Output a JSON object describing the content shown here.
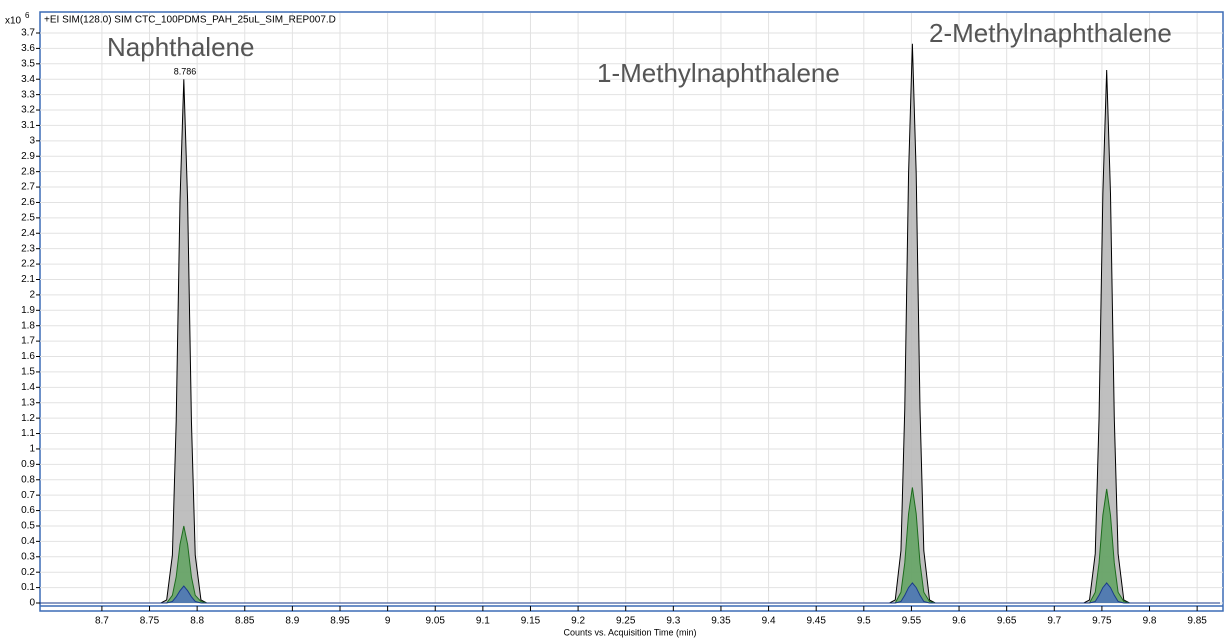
{
  "chart_data": {
    "type": "area",
    "title": "+EI SIM(128.0) SIM CTC_100PDMS_PAH_25uL_SIM_REP007.D",
    "x_label": "Counts vs. Acquisition Time (min)",
    "y_multiplier": {
      "base": "x10",
      "exponent": "6"
    },
    "annotations": [
      "Naphthalene",
      "1-Methylnaphthalene",
      "2-Methylnaphthalene",
      "8.786"
    ],
    "xlim": [
      8.635,
      9.874
    ],
    "ylim": [
      0,
      3.7
    ],
    "xticks": [
      8.7,
      8.75,
      8.8,
      8.85,
      8.9,
      8.95,
      9,
      9.05,
      9.1,
      9.15,
      9.2,
      9.25,
      9.3,
      9.35,
      9.4,
      9.45,
      9.5,
      9.55,
      9.6,
      9.65,
      9.7,
      9.75,
      9.8,
      9.85
    ],
    "yticks": [
      0,
      0.1,
      0.2,
      0.3,
      0.4,
      0.5,
      0.6,
      0.7,
      0.8,
      0.9,
      1,
      1.1,
      1.2,
      1.3,
      1.4,
      1.5,
      1.6,
      1.7,
      1.8,
      1.9,
      2,
      2.1,
      2.2,
      2.3,
      2.4,
      2.5,
      2.6,
      2.7,
      2.8,
      2.9,
      3,
      3.1,
      3.2,
      3.3,
      3.4,
      3.5,
      3.6,
      3.7
    ],
    "grid": true,
    "x": [
      8.635,
      8.762,
      8.768,
      8.774,
      8.778,
      8.782,
      8.786,
      8.79,
      8.794,
      8.798,
      8.804,
      8.81,
      9.527,
      9.533,
      9.539,
      9.543,
      9.547,
      9.551,
      9.555,
      9.559,
      9.563,
      9.569,
      9.575,
      9.731,
      9.737,
      9.743,
      9.747,
      9.751,
      9.755,
      9.759,
      9.763,
      9.767,
      9.773,
      9.779,
      9.874
    ],
    "series": [
      {
        "color": "#b4b4b4",
        "values": [
          0,
          0,
          0.02,
          0.31,
          1.18,
          2.61,
          3.4,
          2.61,
          1.18,
          0.31,
          0.02,
          0,
          0,
          0.02,
          0.34,
          1.26,
          2.79,
          3.63,
          2.79,
          1.26,
          0.34,
          0.02,
          0,
          0,
          0.02,
          0.32,
          1.2,
          2.66,
          3.46,
          2.66,
          1.2,
          0.32,
          0.02,
          0,
          0
        ]
      },
      {
        "color": "#5fa25f",
        "values": [
          0,
          0,
          0,
          0.05,
          0.17,
          0.38,
          0.5,
          0.38,
          0.17,
          0.05,
          0.01,
          0,
          0,
          0,
          0.07,
          0.26,
          0.58,
          0.75,
          0.58,
          0.26,
          0.07,
          0.01,
          0,
          0,
          0,
          0.07,
          0.26,
          0.57,
          0.74,
          0.57,
          0.26,
          0.07,
          0.01,
          0,
          0
        ]
      },
      {
        "color": "#4f74bd",
        "values": [
          0,
          0,
          0,
          0.01,
          0.04,
          0.08,
          0.11,
          0.08,
          0.04,
          0.01,
          0,
          0,
          0,
          0,
          0.01,
          0.05,
          0.1,
          0.13,
          0.1,
          0.05,
          0.01,
          0,
          0,
          0,
          0,
          0.01,
          0.05,
          0.1,
          0.13,
          0.1,
          0.05,
          0.01,
          0,
          0,
          0
        ]
      }
    ]
  }
}
